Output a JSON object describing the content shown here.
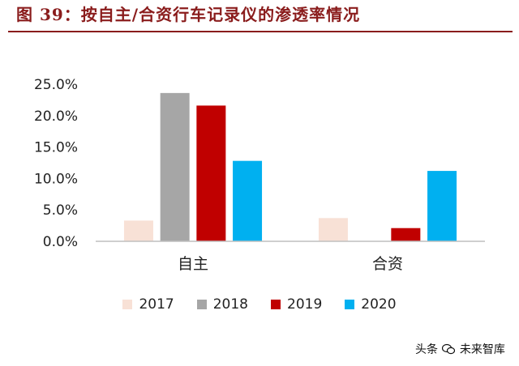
{
  "title": "图 39：按自主/合资行车记录仪的渗透率情况",
  "watermark": {
    "prefix": "头条",
    "brand": "未来智库"
  },
  "colors": {
    "title": "#8a1c1c",
    "axis": "#bfbfbf",
    "text": "#222222"
  },
  "chart_data": {
    "type": "bar",
    "categories": [
      "自主",
      "合资"
    ],
    "series": [
      {
        "name": "2017",
        "color": "#f8e1d6",
        "values": [
          0.033,
          0.037
        ]
      },
      {
        "name": "2018",
        "color": "#a6a6a6",
        "values": [
          0.236,
          0
        ]
      },
      {
        "name": "2019",
        "color": "#c00000",
        "values": [
          0.216,
          0.021
        ]
      },
      {
        "name": "2020",
        "color": "#00b0f0",
        "values": [
          0.128,
          0.112
        ]
      }
    ],
    "y_ticks": [
      "0.0%",
      "5.0%",
      "10.0%",
      "15.0%",
      "20.0%",
      "25.0%"
    ],
    "ylim": [
      0,
      0.25
    ],
    "grid": false,
    "legend_position": "bottom",
    "title": "",
    "xlabel": "",
    "ylabel": ""
  }
}
